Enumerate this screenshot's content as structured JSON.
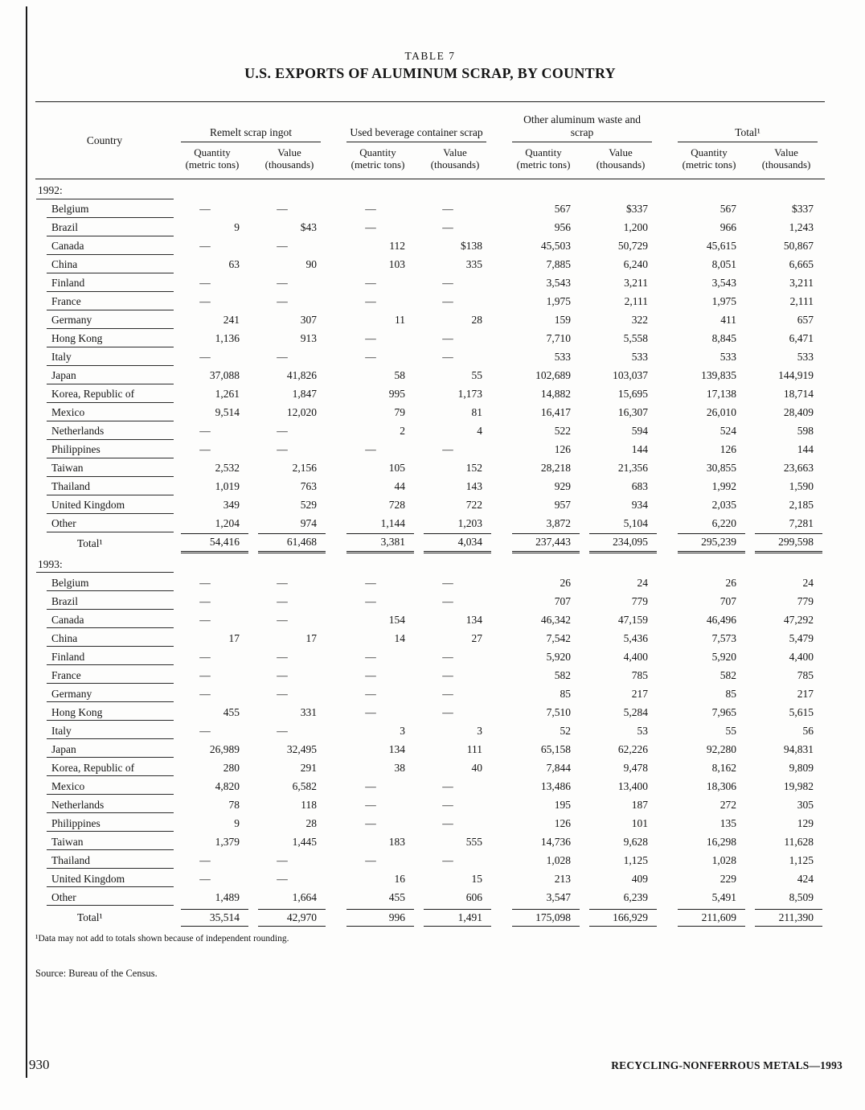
{
  "page": {
    "table_label": "TABLE 7",
    "title": "U.S. EXPORTS OF ALUMINUM SCRAP, BY COUNTRY",
    "footnote": "¹Data may not add to totals shown because of independent rounding.",
    "source": "Source:  Bureau of the Census.",
    "page_number": "930",
    "running_footer": "RECYCLING-NONFERROUS METALS—1993"
  },
  "table": {
    "country_header": "Country",
    "groups": [
      {
        "label": "Remelt scrap ingot"
      },
      {
        "label": "Used beverage container scrap"
      },
      {
        "label": "Other aluminum waste and scrap"
      },
      {
        "label": "Total¹"
      }
    ],
    "subheaders": {
      "quantity": "Quantity",
      "quantity_unit": "(metric tons)",
      "value": "Value",
      "value_unit": "(thousands)"
    },
    "sections": [
      {
        "label": "1992:",
        "rows": [
          {
            "country": "Belgium",
            "cells": [
              "—",
              "—",
              "—",
              "—",
              "567",
              "$337",
              "567",
              "$337"
            ]
          },
          {
            "country": "Brazil",
            "cells": [
              "9",
              "$43",
              "—",
              "—",
              "956",
              "1,200",
              "966",
              "1,243"
            ]
          },
          {
            "country": "Canada",
            "cells": [
              "—",
              "—",
              "112",
              "$138",
              "45,503",
              "50,729",
              "45,615",
              "50,867"
            ]
          },
          {
            "country": "China",
            "cells": [
              "63",
              "90",
              "103",
              "335",
              "7,885",
              "6,240",
              "8,051",
              "6,665"
            ]
          },
          {
            "country": "Finland",
            "cells": [
              "—",
              "—",
              "—",
              "—",
              "3,543",
              "3,211",
              "3,543",
              "3,211"
            ]
          },
          {
            "country": "France",
            "cells": [
              "—",
              "—",
              "—",
              "—",
              "1,975",
              "2,111",
              "1,975",
              "2,111"
            ]
          },
          {
            "country": "Germany",
            "cells": [
              "241",
              "307",
              "11",
              "28",
              "159",
              "322",
              "411",
              "657"
            ]
          },
          {
            "country": "Hong Kong",
            "cells": [
              "1,136",
              "913",
              "—",
              "—",
              "7,710",
              "5,558",
              "8,845",
              "6,471"
            ]
          },
          {
            "country": "Italy",
            "cells": [
              "—",
              "—",
              "—",
              "—",
              "533",
              "533",
              "533",
              "533"
            ]
          },
          {
            "country": "Japan",
            "cells": [
              "37,088",
              "41,826",
              "58",
              "55",
              "102,689",
              "103,037",
              "139,835",
              "144,919"
            ]
          },
          {
            "country": "Korea, Republic of",
            "cells": [
              "1,261",
              "1,847",
              "995",
              "1,173",
              "14,882",
              "15,695",
              "17,138",
              "18,714"
            ]
          },
          {
            "country": "Mexico",
            "cells": [
              "9,514",
              "12,020",
              "79",
              "81",
              "16,417",
              "16,307",
              "26,010",
              "28,409"
            ]
          },
          {
            "country": "Netherlands",
            "cells": [
              "—",
              "—",
              "2",
              "4",
              "522",
              "594",
              "524",
              "598"
            ]
          },
          {
            "country": "Philippines",
            "cells": [
              "—",
              "—",
              "—",
              "—",
              "126",
              "144",
              "126",
              "144"
            ]
          },
          {
            "country": "Taiwan",
            "cells": [
              "2,532",
              "2,156",
              "105",
              "152",
              "28,218",
              "21,356",
              "30,855",
              "23,663"
            ]
          },
          {
            "country": "Thailand",
            "cells": [
              "1,019",
              "763",
              "44",
              "143",
              "929",
              "683",
              "1,992",
              "1,590"
            ]
          },
          {
            "country": "United Kingdom",
            "cells": [
              "349",
              "529",
              "728",
              "722",
              "957",
              "934",
              "2,035",
              "2,185"
            ]
          },
          {
            "country": "Other",
            "cells": [
              "1,204",
              "974",
              "1,144",
              "1,203",
              "3,872",
              "5,104",
              "6,220",
              "7,281"
            ]
          }
        ],
        "total": {
          "label": "Total¹",
          "cells": [
            "54,416",
            "61,468",
            "3,381",
            "4,034",
            "237,443",
            "234,095",
            "295,239",
            "299,598"
          ]
        }
      },
      {
        "label": "1993:",
        "rows": [
          {
            "country": "Belgium",
            "cells": [
              "—",
              "—",
              "—",
              "—",
              "26",
              "24",
              "26",
              "24"
            ]
          },
          {
            "country": "Brazil",
            "cells": [
              "—",
              "—",
              "—",
              "—",
              "707",
              "779",
              "707",
              "779"
            ]
          },
          {
            "country": "Canada",
            "cells": [
              "—",
              "—",
              "154",
              "134",
              "46,342",
              "47,159",
              "46,496",
              "47,292"
            ]
          },
          {
            "country": "China",
            "cells": [
              "17",
              "17",
              "14",
              "27",
              "7,542",
              "5,436",
              "7,573",
              "5,479"
            ]
          },
          {
            "country": "Finland",
            "cells": [
              "—",
              "—",
              "—",
              "—",
              "5,920",
              "4,400",
              "5,920",
              "4,400"
            ]
          },
          {
            "country": "France",
            "cells": [
              "—",
              "—",
              "—",
              "—",
              "582",
              "785",
              "582",
              "785"
            ]
          },
          {
            "country": "Germany",
            "cells": [
              "—",
              "—",
              "—",
              "—",
              "85",
              "217",
              "85",
              "217"
            ]
          },
          {
            "country": "Hong Kong",
            "cells": [
              "455",
              "331",
              "—",
              "—",
              "7,510",
              "5,284",
              "7,965",
              "5,615"
            ]
          },
          {
            "country": "Italy",
            "cells": [
              "—",
              "—",
              "3",
              "3",
              "52",
              "53",
              "55",
              "56"
            ]
          },
          {
            "country": "Japan",
            "cells": [
              "26,989",
              "32,495",
              "134",
              "111",
              "65,158",
              "62,226",
              "92,280",
              "94,831"
            ]
          },
          {
            "country": "Korea, Republic of",
            "cells": [
              "280",
              "291",
              "38",
              "40",
              "7,844",
              "9,478",
              "8,162",
              "9,809"
            ]
          },
          {
            "country": "Mexico",
            "cells": [
              "4,820",
              "6,582",
              "—",
              "—",
              "13,486",
              "13,400",
              "18,306",
              "19,982"
            ]
          },
          {
            "country": "Netherlands",
            "cells": [
              "78",
              "118",
              "—",
              "—",
              "195",
              "187",
              "272",
              "305"
            ]
          },
          {
            "country": "Philippines",
            "cells": [
              "9",
              "28",
              "—",
              "—",
              "126",
              "101",
              "135",
              "129"
            ]
          },
          {
            "country": "Taiwan",
            "cells": [
              "1,379",
              "1,445",
              "183",
              "555",
              "14,736",
              "9,628",
              "16,298",
              "11,628"
            ]
          },
          {
            "country": "Thailand",
            "cells": [
              "—",
              "—",
              "—",
              "—",
              "1,028",
              "1,125",
              "1,028",
              "1,125"
            ]
          },
          {
            "country": "United Kingdom",
            "cells": [
              "—",
              "—",
              "16",
              "15",
              "213",
              "409",
              "229",
              "424"
            ]
          },
          {
            "country": "Other",
            "cells": [
              "1,489",
              "1,664",
              "455",
              "606",
              "3,547",
              "6,239",
              "5,491",
              "8,509"
            ]
          }
        ],
        "total": {
          "label": "Total¹",
          "cells": [
            "35,514",
            "42,970",
            "996",
            "1,491",
            "175,098",
            "166,929",
            "211,609",
            "211,390"
          ]
        }
      }
    ]
  }
}
